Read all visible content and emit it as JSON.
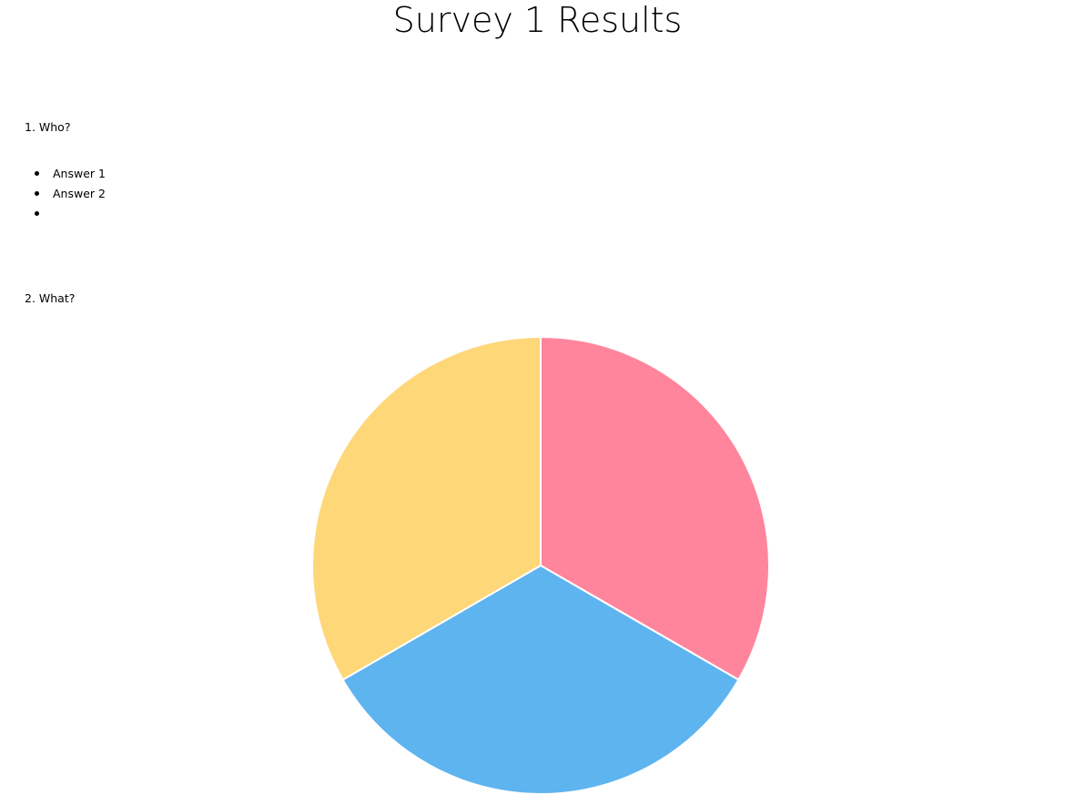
{
  "page": {
    "title": "Survey 1 Results"
  },
  "questions": [
    {
      "label": "1. Who?",
      "answers": [
        "Answer 1",
        "Answer 2",
        ""
      ]
    },
    {
      "label": "2. What?"
    }
  ],
  "chart_data": {
    "type": "pie",
    "title": "",
    "slices": [
      {
        "value": 1,
        "color": "#FF859D"
      },
      {
        "value": 1,
        "color": "#5EB4EF"
      },
      {
        "value": 1,
        "color": "#FED779"
      }
    ]
  }
}
